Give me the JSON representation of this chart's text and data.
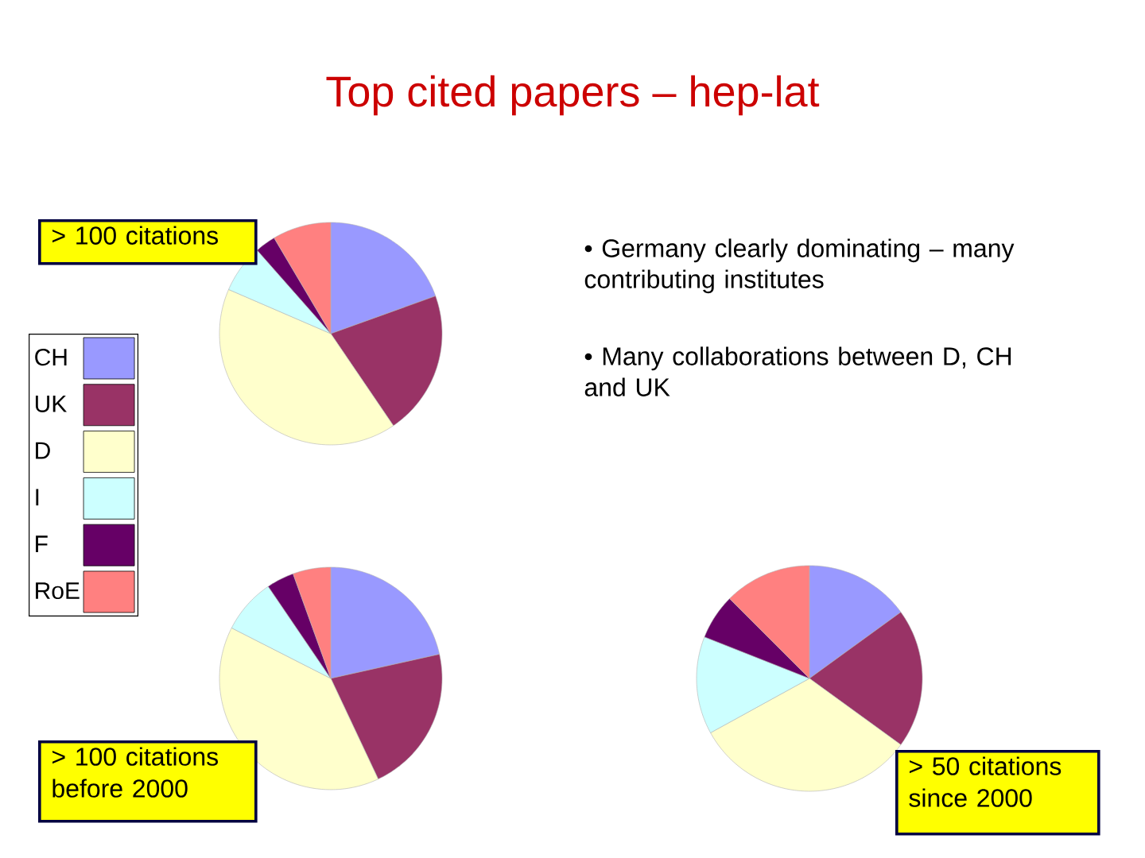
{
  "chart_data": [
    {
      "type": "pie",
      "title": "> 100 citations",
      "categories": [
        "CH",
        "UK",
        "D",
        "I",
        "F",
        "RoE"
      ],
      "values": [
        19.5,
        21,
        41,
        7,
        3,
        8.5
      ],
      "colors": [
        "#9999ff",
        "#993366",
        "#ffffcc",
        "#ccffff",
        "#660066",
        "#ff8080"
      ],
      "legend": "left",
      "annotations": [
        "Top cited papers – hep-lat",
        "• Germany clearly dominating – many contributing institutes",
        "• Many collaborations between D, CH and UK"
      ]
    },
    {
      "type": "pie",
      "title": "> 100 citations before 2000",
      "categories": [
        null,
        null,
        null,
        null,
        null,
        null
      ],
      "values": [
        21.5,
        21.5,
        39.5,
        8,
        4,
        5.5
      ],
      "colors": [
        "#9999ff",
        "#993366",
        "#ffffcc",
        "#ccffff",
        "#660066",
        "#ff8080"
      ]
    },
    {
      "type": "pie",
      "title": "> 50 citations since 2000",
      "categories": [
        null,
        null,
        null,
        null,
        null,
        null
      ],
      "values": [
        15,
        20,
        32,
        14,
        6.5,
        12.5
      ],
      "colors": [
        "#9999ff",
        "#993366",
        "#ffffcc",
        "#ccffff",
        "#660066",
        "#ff8080"
      ]
    }
  ]
}
